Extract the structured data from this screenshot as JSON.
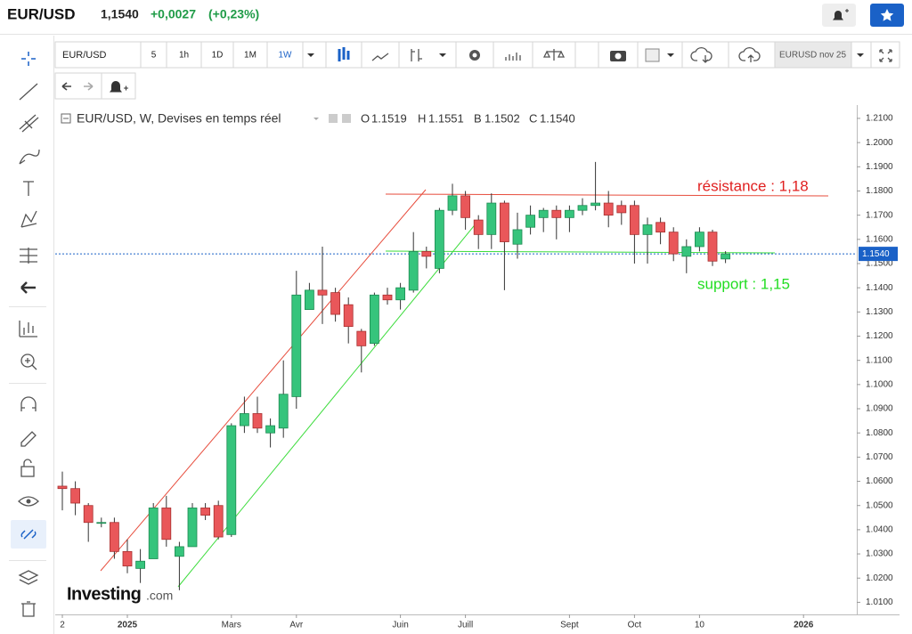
{
  "header": {
    "symbol": "EUR/USD",
    "price": "1,1540",
    "change": "+0,0027",
    "change_pct": "(+0,23%)"
  },
  "toolbar": {
    "symbol": "EUR/USD",
    "intervals": [
      "5",
      "1h",
      "1D",
      "1M",
      "1W"
    ],
    "contract": "EURUSD nov 25"
  },
  "legend": {
    "title": "EUR/USD, W, Devises en temps réel",
    "ohlc": [
      [
        "O",
        "1.1519"
      ],
      [
        "H",
        "1.1551"
      ],
      [
        "B",
        "1.1502"
      ],
      [
        "C",
        "1.1540"
      ]
    ]
  },
  "logo": {
    "brand": "Investing",
    "suffix": ".com"
  },
  "chart_data": {
    "type": "candlestick",
    "categories": [
      "2",
      null,
      null,
      null,
      null,
      "2025",
      null,
      null,
      null,
      null,
      null,
      null,
      null,
      "Mars",
      null,
      null,
      null,
      null,
      "Avr",
      null,
      null,
      null,
      null,
      null,
      null,
      null,
      "Juin",
      null,
      null,
      null,
      null,
      "Juill",
      null,
      null,
      null,
      null,
      null,
      null,
      null,
      "Sept",
      null,
      null,
      null,
      null,
      "Oct",
      null,
      null,
      null,
      null,
      "10",
      null,
      null,
      null,
      null,
      null,
      null,
      null,
      "2026"
    ],
    "open": [
      1.058,
      1.057,
      1.05,
      1.043,
      1.043,
      1.031,
      1.024,
      1.028,
      1.049,
      1.029,
      1.033,
      1.049,
      1.05,
      1.038,
      1.083,
      1.088,
      1.08,
      1.082,
      1.095,
      1.131,
      1.139,
      1.138,
      1.133,
      1.122,
      1.117,
      1.137,
      1.135,
      1.139,
      1.155,
      1.148,
      1.172,
      1.178,
      1.168,
      1.162,
      1.175,
      1.158,
      1.165,
      1.169,
      1.172,
      1.169,
      1.172,
      1.174,
      1.175,
      1.174,
      1.174,
      1.162,
      1.167,
      1.163,
      1.153,
      1.157,
      1.163,
      1.1519,
      null,
      null,
      null,
      null,
      null,
      null
    ],
    "high": [
      1.064,
      1.06,
      1.051,
      1.045,
      1.045,
      1.036,
      1.032,
      1.051,
      1.054,
      1.035,
      1.051,
      1.051,
      1.052,
      1.084,
      1.095,
      1.095,
      1.086,
      1.11,
      1.147,
      1.142,
      1.157,
      1.14,
      1.136,
      1.123,
      1.138,
      1.14,
      1.142,
      1.163,
      1.157,
      1.173,
      1.183,
      1.18,
      1.17,
      1.179,
      1.176,
      1.171,
      1.174,
      1.173,
      1.174,
      1.174,
      1.177,
      1.192,
      1.18,
      1.176,
      1.176,
      1.169,
      1.169,
      1.165,
      1.16,
      1.165,
      1.164,
      1.1551,
      null,
      null,
      null,
      null,
      null,
      null
    ],
    "low": [
      1.048,
      1.046,
      1.035,
      1.041,
      1.028,
      1.022,
      1.018,
      1.028,
      1.033,
      1.015,
      1.033,
      1.044,
      1.036,
      1.037,
      1.08,
      1.08,
      1.074,
      1.078,
      1.09,
      1.131,
      1.125,
      1.126,
      1.117,
      1.105,
      1.116,
      1.133,
      1.131,
      1.138,
      1.148,
      1.146,
      1.17,
      1.164,
      1.156,
      1.156,
      1.139,
      1.152,
      1.162,
      1.163,
      1.16,
      1.163,
      1.17,
      1.172,
      1.165,
      1.166,
      1.15,
      1.15,
      1.158,
      1.151,
      1.146,
      1.155,
      1.149,
      1.1502,
      null,
      null,
      null,
      null,
      null,
      null
    ],
    "close": [
      1.057,
      1.051,
      1.043,
      1.043,
      1.031,
      1.025,
      1.027,
      1.049,
      1.036,
      1.033,
      1.049,
      1.046,
      1.037,
      1.083,
      1.088,
      1.082,
      1.083,
      1.096,
      1.137,
      1.139,
      1.137,
      1.129,
      1.124,
      1.116,
      1.137,
      1.135,
      1.14,
      1.155,
      1.153,
      1.172,
      1.178,
      1.169,
      1.162,
      1.175,
      1.159,
      1.164,
      1.17,
      1.172,
      1.169,
      1.172,
      1.174,
      1.175,
      1.17,
      1.171,
      1.162,
      1.166,
      1.163,
      1.154,
      1.157,
      1.163,
      1.151,
      1.154,
      null,
      null,
      null,
      null,
      null,
      null
    ],
    "up_color": "#36c47c",
    "down_color": "#e9575a",
    "ylim": [
      1.005,
      1.2155
    ],
    "yticks": [
      {
        "value": 1.01,
        "label": "1.0100"
      },
      {
        "value": 1.02,
        "label": "1.0200"
      },
      {
        "value": 1.03,
        "label": "1.0300"
      },
      {
        "value": 1.04,
        "label": "1.0400"
      },
      {
        "value": 1.05,
        "label": "1.0500"
      },
      {
        "value": 1.06,
        "label": "1.0600"
      },
      {
        "value": 1.07,
        "label": "1.0700"
      },
      {
        "value": 1.08,
        "label": "1.0800"
      },
      {
        "value": 1.09,
        "label": "1.0900"
      },
      {
        "value": 1.1,
        "label": "1.1000"
      },
      {
        "value": 1.11,
        "label": "1.1100"
      },
      {
        "value": 1.12,
        "label": "1.1200"
      },
      {
        "value": 1.13,
        "label": "1.1300"
      },
      {
        "value": 1.14,
        "label": "1.1400"
      },
      {
        "value": 1.15,
        "label": "1.1500"
      },
      {
        "value": 1.16,
        "label": "1.1600"
      },
      {
        "value": 1.17,
        "label": "1.1700"
      },
      {
        "value": 1.18,
        "label": "1.1800"
      },
      {
        "value": 1.19,
        "label": "1.1900"
      },
      {
        "value": 1.2,
        "label": "1.2000"
      },
      {
        "value": 1.21,
        "label": "1.2100"
      }
    ],
    "last_price": {
      "value": 1.154,
      "label": "1.1540"
    },
    "annotations": [
      "résistance : 1,18",
      "support : 1,15"
    ],
    "grid": false
  }
}
